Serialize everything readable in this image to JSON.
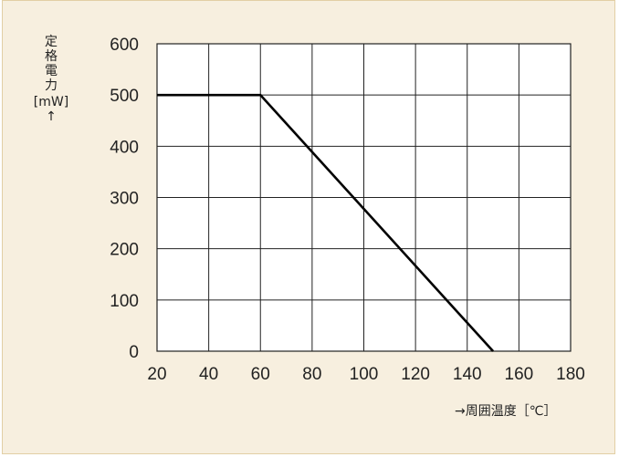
{
  "chart_data": {
    "type": "line",
    "title": "",
    "ylabel_chars": [
      "定",
      "格",
      "電",
      "力"
    ],
    "ylabel_unit": "[mW]",
    "ylabel_arrow": "↑",
    "xlabel": "→周囲温度［℃］",
    "xlim": [
      20,
      180
    ],
    "ylim": [
      0,
      600
    ],
    "xticks": [
      20,
      40,
      60,
      80,
      100,
      120,
      140,
      160,
      180
    ],
    "yticks": [
      0,
      100,
      200,
      300,
      400,
      500,
      600
    ],
    "grid": true,
    "series": [
      {
        "x": [
          20,
          60,
          150
        ],
        "y": [
          500,
          500,
          0
        ]
      }
    ],
    "colors": {
      "background": "#f7efdf",
      "plot": "#ffffff",
      "line": "#000000",
      "grid": "#222222"
    }
  }
}
